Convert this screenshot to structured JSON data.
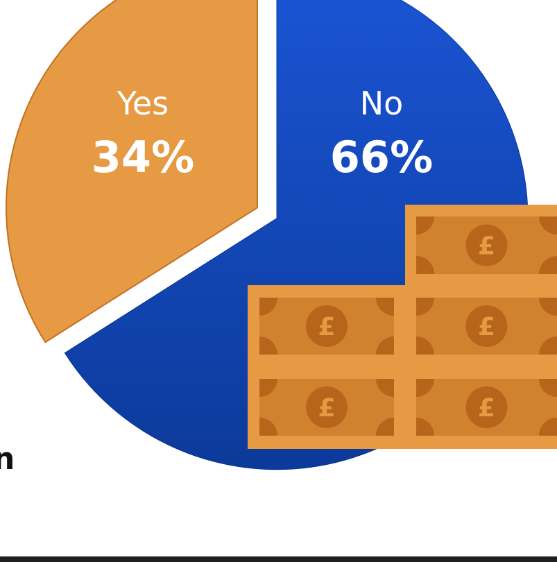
{
  "chart_data": {
    "type": "pie",
    "slices": [
      {
        "label": "Yes",
        "value": 34,
        "display": "34%"
      },
      {
        "label": "No",
        "value": 66,
        "display": "66%"
      }
    ],
    "legend": "none"
  },
  "colors": {
    "yes": "#E59A43",
    "yes_edge": "#C27122",
    "no_top": "#1B55D6",
    "no_bottom": "#0C3A9A",
    "bill": "#E59A43",
    "bill_inner": "#D1822F",
    "bill_corner": "#B8651C",
    "text": "#FFFFFF"
  },
  "illustration": {
    "icon": "pound-banknotes-stack-icon",
    "currency_symbol": "£"
  },
  "edge_text": "n"
}
